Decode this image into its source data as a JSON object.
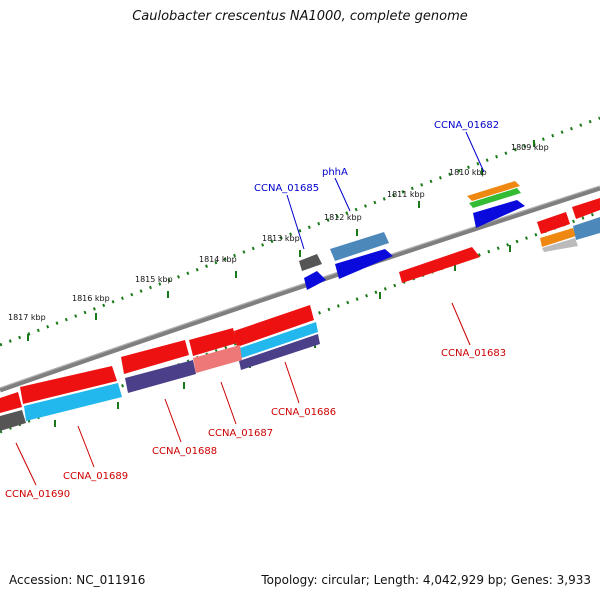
{
  "title": "Caulobacter crescentus NA1000, complete genome",
  "accession": "Accession: NC_011916",
  "summary": "Topology: circular; Length: 4,042,929 bp; Genes: 3,933",
  "colors": {
    "plus_strand_label": "#0000cc",
    "minus_strand_label": "#cc0000",
    "backbone": "#7f7f7f",
    "tick": "#1a7a1a"
  },
  "scale_ticks": [
    {
      "label": "1809 kbp"
    },
    {
      "label": "1810 kbp"
    },
    {
      "label": "1811 kbp"
    },
    {
      "label": "1812 kbp"
    },
    {
      "label": "1813 kbp"
    },
    {
      "label": "1814 kbp"
    },
    {
      "label": "1815 kbp"
    },
    {
      "label": "1816 kbp"
    },
    {
      "label": "1817 kbp"
    }
  ],
  "gene_labels": {
    "ccna_01682": "CCNA_01682",
    "phha": "phhA",
    "ccna_01685": "CCNA_01685",
    "ccna_01683": "CCNA_01683",
    "ccna_01686": "CCNA_01686",
    "ccna_01687": "CCNA_01687",
    "ccna_01688": "CCNA_01688",
    "ccna_01689": "CCNA_01689",
    "ccna_01690": "CCNA_01690"
  },
  "feature_colors": {
    "red": "#ee1111",
    "blue": "#0a0adc",
    "steelblue": "#4d88bb",
    "cyan": "#22b8ee",
    "navy": "#4a3f88",
    "pink": "#ee7777",
    "gray": "#555555",
    "orange": "#ee8811",
    "green": "#33bb33",
    "lightgray": "#bbbbbb"
  }
}
